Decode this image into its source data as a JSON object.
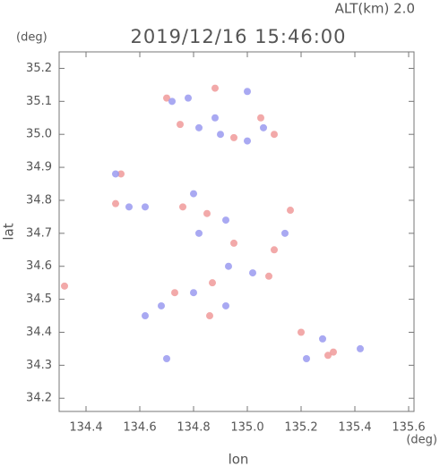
{
  "chart_data": {
    "type": "scatter",
    "subtitle": "ALT(km) 2.0",
    "title": "2019/12/16 15:46:00",
    "y_unit": "(deg)",
    "x_unit": "(deg)",
    "ylabel": "lat",
    "xlabel": "lon",
    "xlim": [
      134.3,
      135.62
    ],
    "ylim": [
      34.16,
      35.25
    ],
    "xticks": [
      134.4,
      134.6,
      134.8,
      {
        "value": 135.0,
        "label": "135.0"
      },
      135.2,
      135.4,
      135.6
    ],
    "yticks": [
      34.2,
      34.3,
      34.4,
      34.5,
      34.6,
      34.7,
      34.8,
      34.9,
      {
        "value": 35.0,
        "label": "35.0"
      },
      35.1,
      35.2
    ],
    "series": [
      {
        "color": "#f09a9a",
        "x": [
          134.32,
          134.53,
          134.51,
          134.7,
          134.75,
          134.95,
          135.1,
          134.88,
          134.76,
          134.85,
          134.95,
          135.08,
          135.1,
          135.16,
          134.87,
          134.73,
          134.86,
          135.05,
          135.3,
          135.32,
          135.2
        ],
        "y": [
          34.54,
          34.88,
          34.79,
          35.11,
          35.03,
          34.99,
          35.0,
          35.14,
          34.78,
          34.76,
          34.67,
          34.57,
          34.65,
          34.77,
          34.55,
          34.52,
          34.45,
          35.05,
          34.33,
          34.34,
          34.4
        ]
      },
      {
        "color": "#9a9af0",
        "x": [
          134.51,
          134.56,
          134.62,
          134.7,
          134.72,
          134.78,
          134.82,
          134.88,
          134.9,
          135.0,
          135.06,
          134.8,
          134.82,
          134.92,
          134.93,
          135.02,
          135.14,
          134.8,
          134.68,
          134.62,
          134.92,
          135.22,
          135.28,
          135.42,
          135.0
        ],
        "y": [
          34.88,
          34.78,
          34.78,
          34.32,
          35.1,
          35.11,
          35.02,
          35.05,
          35.0,
          34.98,
          35.02,
          34.82,
          34.7,
          34.74,
          34.6,
          34.58,
          34.7,
          34.52,
          34.48,
          34.45,
          34.48,
          34.32,
          34.38,
          34.35,
          35.13
        ]
      }
    ]
  }
}
